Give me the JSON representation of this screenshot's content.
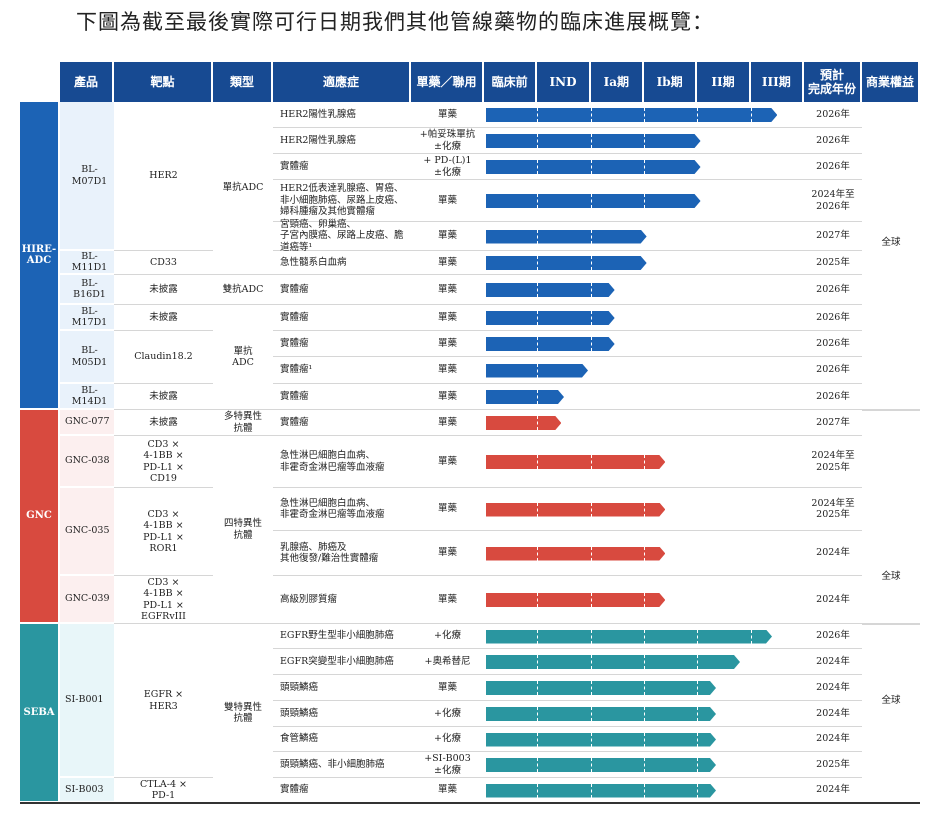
{
  "title": "下圖為截至最後實際可行日期我們其他管線藥物的臨床進展概覽：",
  "header": [
    "產品",
    "靶點",
    "類型",
    "適應症",
    "單藥／聯用",
    "臨床前",
    "IND",
    "Ia期",
    "Ib期",
    "II期",
    "III期",
    "預計\n完成年份",
    "商業權益"
  ],
  "colors": {
    "header": "#174a92",
    "HIRE-ADC": "#1c63b5",
    "GNC": "#d84a3f",
    "SEBA": "#2a96a0"
  },
  "chart_data": {
    "type": "bar",
    "stages": [
      "臨床前",
      "IND",
      "Ia期",
      "Ib期",
      "II期",
      "III期"
    ],
    "groups": [
      {
        "name": "HIRE-\nADC",
        "color": "#1c63b5",
        "product_bg": "#e9f2fb",
        "rights": "全球",
        "products": [
          {
            "name": "BL-M07D1",
            "rows": [
              0,
              4
            ]
          },
          {
            "name": "BL-M11D1",
            "rows": [
              5,
              5
            ]
          },
          {
            "name": "BL-B16D1",
            "rows": [
              6,
              6
            ]
          },
          {
            "name": "BL-M17D1",
            "rows": [
              7,
              7
            ]
          },
          {
            "name": "BL-M05D1",
            "rows": [
              8,
              9
            ]
          },
          {
            "name": "BL-M14D1",
            "rows": [
              10,
              10
            ]
          }
        ],
        "targets": [
          {
            "name": "HER2",
            "rows": [
              0,
              4
            ]
          },
          {
            "name": "CD33",
            "rows": [
              5,
              5
            ]
          },
          {
            "name": "未披露",
            "rows": [
              6,
              6
            ]
          },
          {
            "name": "未披露",
            "rows": [
              7,
              7
            ]
          },
          {
            "name": "Claudin18.2",
            "rows": [
              8,
              9
            ]
          },
          {
            "name": "未披露",
            "rows": [
              10,
              10
            ]
          }
        ],
        "types": [
          {
            "name": "單抗ADC",
            "rows": [
              0,
              5
            ]
          },
          {
            "name": "雙抗ADC",
            "rows": [
              6,
              6
            ]
          },
          {
            "name": "單抗\nADC",
            "rows": [
              7,
              10
            ]
          }
        ]
      },
      {
        "name": "GNC",
        "color": "#d84a3f",
        "product_bg": "#fcefef",
        "rights": "全球",
        "products": [
          {
            "name": "GNC-077",
            "rows": [
              11,
              11
            ]
          },
          {
            "name": "GNC-038",
            "rows": [
              12,
              12
            ]
          },
          {
            "name": "GNC-035",
            "rows": [
              13,
              14
            ]
          },
          {
            "name": "GNC-039",
            "rows": [
              15,
              15
            ]
          }
        ],
        "targets": [
          {
            "name": "未披露",
            "rows": [
              11,
              11
            ]
          },
          {
            "name": "CD3 ×\n4-1BB ×\nPD-L1 ×\nCD19",
            "rows": [
              12,
              12
            ]
          },
          {
            "name": "CD3 ×\n4-1BB ×\nPD-L1 ×\nROR1",
            "rows": [
              13,
              14
            ]
          },
          {
            "name": "CD3 ×\n4-1BB ×\nPD-L1 ×\nEGFRvIII",
            "rows": [
              15,
              15
            ]
          }
        ],
        "types": [
          {
            "name": "多特異性\n抗體",
            "rows": [
              11,
              11
            ]
          },
          {
            "name": "四特異性\n抗體",
            "rows": [
              12,
              15
            ]
          }
        ]
      },
      {
        "name": "SEBA",
        "color": "#2a96a0",
        "product_bg": "#e8f6f9",
        "rights": "全球",
        "products": [
          {
            "name": "SI-B001",
            "rows": [
              16,
              21
            ]
          },
          {
            "name": "SI-B003",
            "rows": [
              22,
              22
            ]
          }
        ],
        "targets": [
          {
            "name": "EGFR ×\nHER3",
            "rows": [
              16,
              21
            ]
          },
          {
            "name": "CTLA-4 ×\nPD-1",
            "rows": [
              22,
              22
            ]
          }
        ],
        "types": [
          {
            "name": "雙特異性\n抗體",
            "rows": [
              16,
              22
            ]
          }
        ]
      }
    ],
    "rows": [
      {
        "indication": "HER2陽性乳腺癌",
        "usage": "單藥",
        "stage_end": 5.5,
        "year": "2026年"
      },
      {
        "indication": "HER2陽性乳腺癌",
        "usage": "+帕妥珠單抗\n±化療",
        "stage_end": 4.06,
        "year": "2026年"
      },
      {
        "indication": "實體瘤",
        "usage": "+ PD-(L)1\n±化療",
        "stage_end": 4.06,
        "year": "2026年"
      },
      {
        "indication": "HER2低表達乳腺癌、胃癌、\n非小細胞肺癌、尿路上皮癌、\n婦科腫瘤及其他實體瘤",
        "usage": "單藥",
        "stage_end": 4.06,
        "year": "2024年至\n2026年"
      },
      {
        "indication": "宮頸癌、卵巢癌、\n子宮內膜癌、尿路上皮癌、膽道癌等¹",
        "usage": "單藥",
        "stage_end": 3.05,
        "year": "2027年"
      },
      {
        "indication": "急性髓系白血病",
        "usage": "單藥",
        "stage_end": 3.05,
        "year": "2025年"
      },
      {
        "indication": "實體瘤",
        "usage": "單藥",
        "stage_end": 2.45,
        "year": "2026年"
      },
      {
        "indication": "實體瘤",
        "usage": "單藥",
        "stage_end": 2.45,
        "year": "2026年"
      },
      {
        "indication": "實體瘤",
        "usage": "單藥",
        "stage_end": 2.45,
        "year": "2026年"
      },
      {
        "indication": "實體瘤¹",
        "usage": "單藥",
        "stage_end": 1.95,
        "year": "2026年"
      },
      {
        "indication": "實體瘤",
        "usage": "單藥",
        "stage_end": 1.5,
        "year": "2026年"
      },
      {
        "indication": "實體瘤",
        "usage": "單藥",
        "stage_end": 1.45,
        "year": "2027年"
      },
      {
        "indication": "急性淋巴細胞白血病、\n非霍奇金淋巴瘤等血液瘤",
        "usage": "單藥",
        "stage_end": 3.4,
        "year": "2024年至\n2025年"
      },
      {
        "indication": "急性淋巴細胞白血病、\n非霍奇金淋巴瘤等血液瘤",
        "usage": "單藥",
        "stage_end": 3.4,
        "year": "2024年至\n2025年"
      },
      {
        "indication": "乳腺癌、肺癌及\n其他復發/難治性實體瘤",
        "usage": "單藥",
        "stage_end": 3.4,
        "year": "2024年"
      },
      {
        "indication": "高級別膠質瘤",
        "usage": "單藥",
        "stage_end": 3.4,
        "year": "2024年"
      },
      {
        "indication": "EGFR野生型非小細胞肺癌",
        "usage": "+化療",
        "stage_end": 5.4,
        "year": "2026年"
      },
      {
        "indication": "EGFR突變型非小細胞肺癌",
        "usage": "+奧希替尼",
        "stage_end": 4.8,
        "year": "2024年"
      },
      {
        "indication": "頭頸鱗癌",
        "usage": "單藥",
        "stage_end": 4.35,
        "year": "2024年"
      },
      {
        "indication": "頭頸鱗癌",
        "usage": "+化療",
        "stage_end": 4.35,
        "year": "2024年"
      },
      {
        "indication": "食管鱗癌",
        "usage": "+化療",
        "stage_end": 4.35,
        "year": "2024年"
      },
      {
        "indication": "頭頸鱗癌、非小細胞肺癌",
        "usage": "+SI-B003\n±化療",
        "stage_end": 4.35,
        "year": "2025年"
      },
      {
        "indication": "實體瘤",
        "usage": "單藥",
        "stage_end": 4.35,
        "year": "2024年"
      }
    ]
  }
}
